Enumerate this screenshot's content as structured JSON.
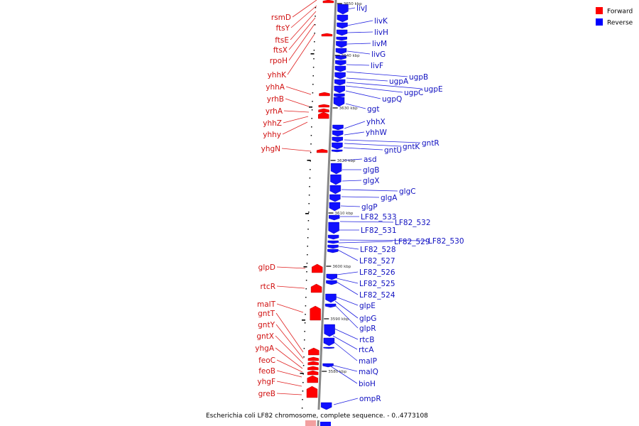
{
  "caption": "Escherichia coli LF82 chromosome, complete sequence. - 0..4773108",
  "legend": {
    "forward": "Forward",
    "reverse": "Reverse",
    "forward_color": "#ff0000",
    "reverse_color": "#0000ff"
  },
  "colors": {
    "forward": "#ff0000",
    "forward_label": "#d01010",
    "reverse": "#1010ff",
    "reverse_label": "#1010c0",
    "backbone": "#888888",
    "leader": "#2020e0",
    "leader_forward": "#e02020"
  },
  "ticks": [
    "3650 kbp",
    "3640 kbp",
    "3630 kbp",
    "3620 kbp",
    "3610 kbp",
    "3600 kbp",
    "3590 kbp",
    "3580 kbp"
  ],
  "forward_genes": [
    "rsmD",
    "ftsY",
    "ftsE",
    "ftsX",
    "rpoH",
    "yhhK",
    "yhhA",
    "yrhB",
    "yrhA",
    "yhhZ",
    "yhhy",
    "yhgN",
    "glpD",
    "rtcR",
    "malT",
    "gntT",
    "gntY",
    "gntX",
    "yhgA",
    "feoC",
    "feoB",
    "yhgF",
    "greB"
  ],
  "reverse_genes": [
    "livJ",
    "livK",
    "livH",
    "livM",
    "livG",
    "livF",
    "ugpB",
    "ugpA",
    "ugpE",
    "ugpC",
    "ugpQ",
    "ggt",
    "yhhX",
    "yhhW",
    "gntR",
    "gntK",
    "gntU",
    "asd",
    "glgB",
    "glgX",
    "glgC",
    "glgA",
    "glgP",
    "LF82_533",
    "LF82_532",
    "LF82_531",
    "LF82_530",
    "LF82_529",
    "LF82_528",
    "LF82_527",
    "LF82_526",
    "LF82_525",
    "LF82_524",
    "glpE",
    "glpG",
    "glpR",
    "rtcB",
    "rtcA",
    "malP",
    "malQ",
    "bioH",
    "ompR"
  ]
}
